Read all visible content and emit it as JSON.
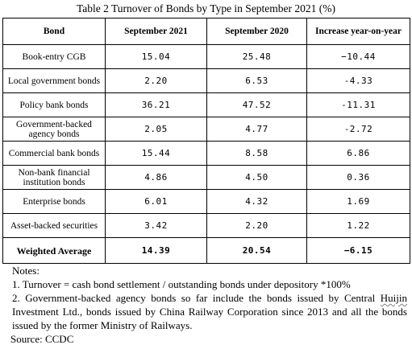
{
  "title": "Table 2   Turnover of Bonds by Type in September 2021 (%)",
  "table": {
    "headers": [
      "Bond",
      "September 2021",
      "September 2020",
      "Increase year-on-year"
    ],
    "rows": [
      {
        "bond": "Book-entry CGB",
        "sep2021": "15.04",
        "sep2020": "25.48",
        "yoy": "−10.44"
      },
      {
        "bond": "Local government bonds",
        "sep2021": "2.20",
        "sep2020": "6.53",
        "yoy": "-4.33"
      },
      {
        "bond": "Policy bank bonds",
        "sep2021": "36.21",
        "sep2020": "47.52",
        "yoy": "-11.31"
      },
      {
        "bond": "Government-backed agency bonds",
        "sep2021": "2.05",
        "sep2020": "4.77",
        "yoy": "-2.72"
      },
      {
        "bond": "Commercial bank bonds",
        "sep2021": "15.44",
        "sep2020": "8.58",
        "yoy": "6.86"
      },
      {
        "bond": "Non-bank financial institution bonds",
        "sep2021": "4.86",
        "sep2020": "4.50",
        "yoy": "0.36"
      },
      {
        "bond": "Enterprise bonds",
        "sep2021": "6.01",
        "sep2020": "4.32",
        "yoy": "1.69"
      },
      {
        "bond": "Asset-backed securities",
        "sep2021": "3.42",
        "sep2020": "2.20",
        "yoy": "1.22"
      }
    ],
    "average": {
      "bond": "Weighted Average",
      "sep2021": "14.39",
      "sep2020": "20.54",
      "yoy": "−6.15"
    }
  },
  "notes": {
    "heading": "Notes:",
    "note1": "1. Turnover = cash bond settlement / outstanding bonds under depository *100%",
    "note2_part1": "2. Government-backed agency bonds so far include the bonds issued by Central ",
    "note2_squiggle": "Huijin",
    "note2_part2": " Investment Ltd., bonds issued by China Railway Corporation since 2013 and all the bonds issued by the former Ministry of Railways.",
    "source": "Source: CCDC"
  }
}
